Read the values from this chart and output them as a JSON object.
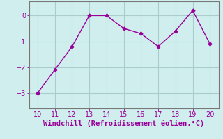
{
  "x": [
    10,
    11,
    12,
    13,
    14,
    15,
    16,
    17,
    18,
    19,
    20
  ],
  "y": [
    -3.0,
    -2.1,
    -1.2,
    0.0,
    0.0,
    -0.5,
    -0.7,
    -1.2,
    -0.6,
    0.2,
    -1.1
  ],
  "line_color": "#990099",
  "marker": "D",
  "marker_size": 2.5,
  "background_color": "#d0eeee",
  "grid_color": "#aacccc",
  "xlabel": "Windchill (Refroidissement éolien,°C)",
  "xlabel_color": "#990099",
  "xlabel_fontsize": 7.5,
  "tick_color": "#990099",
  "tick_fontsize": 7,
  "xlim": [
    9.5,
    20.5
  ],
  "ylim": [
    -3.6,
    0.55
  ],
  "yticks": [
    -3,
    -2,
    -1,
    0
  ],
  "xticks": [
    10,
    11,
    12,
    13,
    14,
    15,
    16,
    17,
    18,
    19,
    20
  ],
  "spine_color": "#777777"
}
